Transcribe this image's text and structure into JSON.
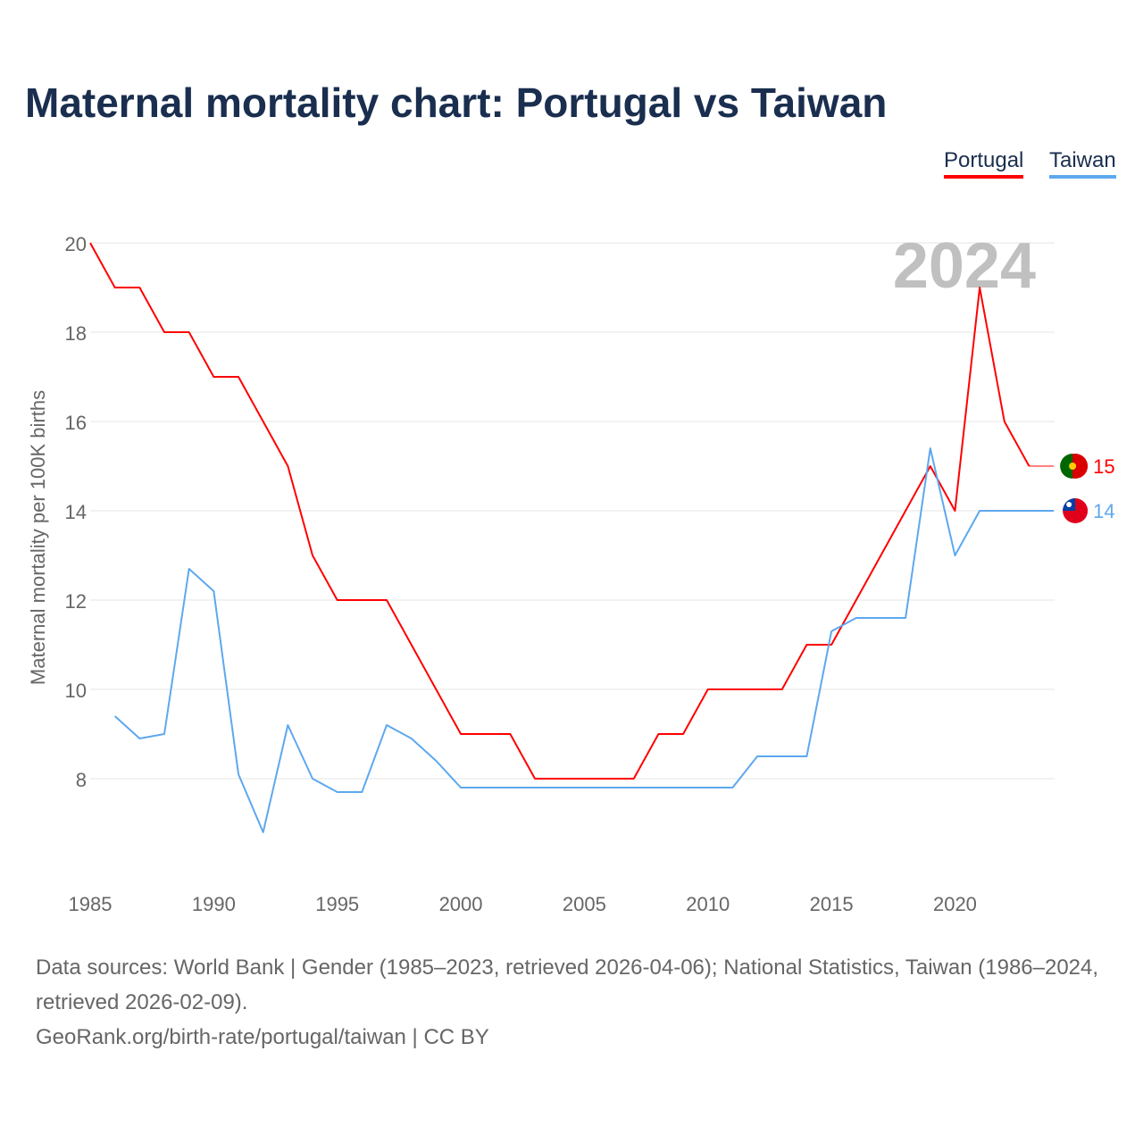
{
  "title": "Maternal mortality chart: Portugal vs Taiwan",
  "footer": {
    "sources": "Data sources: World Bank | Gender (1985–2023, retrieved 2026-04-06); National Statistics, Taiwan (1986–2024, retrieved 2026-02-09).",
    "credit": "GeoRank.org/birth-rate/portugal/taiwan | CC BY"
  },
  "chart_data": {
    "type": "line",
    "title": "Maternal mortality chart: Portugal vs Taiwan",
    "ylabel": "Maternal mortality per 100K births",
    "xlabel": "",
    "year_watermark": "2024",
    "xlim": [
      1985,
      2024
    ],
    "ylim": [
      5.7,
      20.3
    ],
    "xticks": [
      "1985",
      "1990",
      "1995",
      "2000",
      "2005",
      "2010",
      "2015",
      "2020"
    ],
    "yticks": [
      "8",
      "10",
      "12",
      "14",
      "16",
      "18",
      "20"
    ],
    "legend": "top-right",
    "series": [
      {
        "name": "Portugal",
        "color": "#ff0000",
        "end_label": "15",
        "x": [
          1985,
          1986,
          1987,
          1988,
          1989,
          1990,
          1991,
          1992,
          1993,
          1994,
          1995,
          1996,
          1997,
          1998,
          1999,
          2000,
          2001,
          2002,
          2003,
          2004,
          2005,
          2006,
          2007,
          2008,
          2009,
          2010,
          2011,
          2012,
          2013,
          2014,
          2015,
          2016,
          2017,
          2018,
          2019,
          2020,
          2021,
          2022,
          2023
        ],
        "y": [
          20,
          19,
          19,
          18,
          18,
          17,
          17,
          16,
          15,
          13,
          12,
          12,
          12,
          11,
          10,
          9,
          9,
          9,
          8,
          8,
          8,
          8,
          8,
          9,
          9,
          10,
          10,
          10,
          10,
          11,
          11,
          12,
          13,
          14,
          15,
          14,
          19,
          16,
          15
        ]
      },
      {
        "name": "Taiwan",
        "color": "#5ea8ee",
        "end_label": "14",
        "x": [
          1986,
          1987,
          1988,
          1989,
          1990,
          1991,
          1992,
          1993,
          1994,
          1995,
          1996,
          1997,
          1998,
          1999,
          2000,
          2001,
          2002,
          2003,
          2004,
          2005,
          2006,
          2007,
          2008,
          2009,
          2010,
          2011,
          2012,
          2013,
          2014,
          2015,
          2016,
          2017,
          2018,
          2019,
          2020,
          2021,
          2022,
          2023,
          2024
        ],
        "y": [
          9.4,
          8.9,
          9.0,
          12.7,
          12.2,
          8.1,
          6.8,
          9.2,
          8.0,
          7.7,
          7.7,
          9.2,
          8.9,
          8.4,
          7.8,
          7.8,
          7.8,
          7.8,
          7.8,
          7.8,
          7.8,
          7.8,
          7.8,
          7.8,
          7.8,
          7.8,
          8.5,
          8.5,
          8.5,
          11.3,
          11.6,
          11.6,
          11.6,
          15.4,
          13.0,
          14,
          14,
          14,
          14
        ]
      }
    ]
  }
}
